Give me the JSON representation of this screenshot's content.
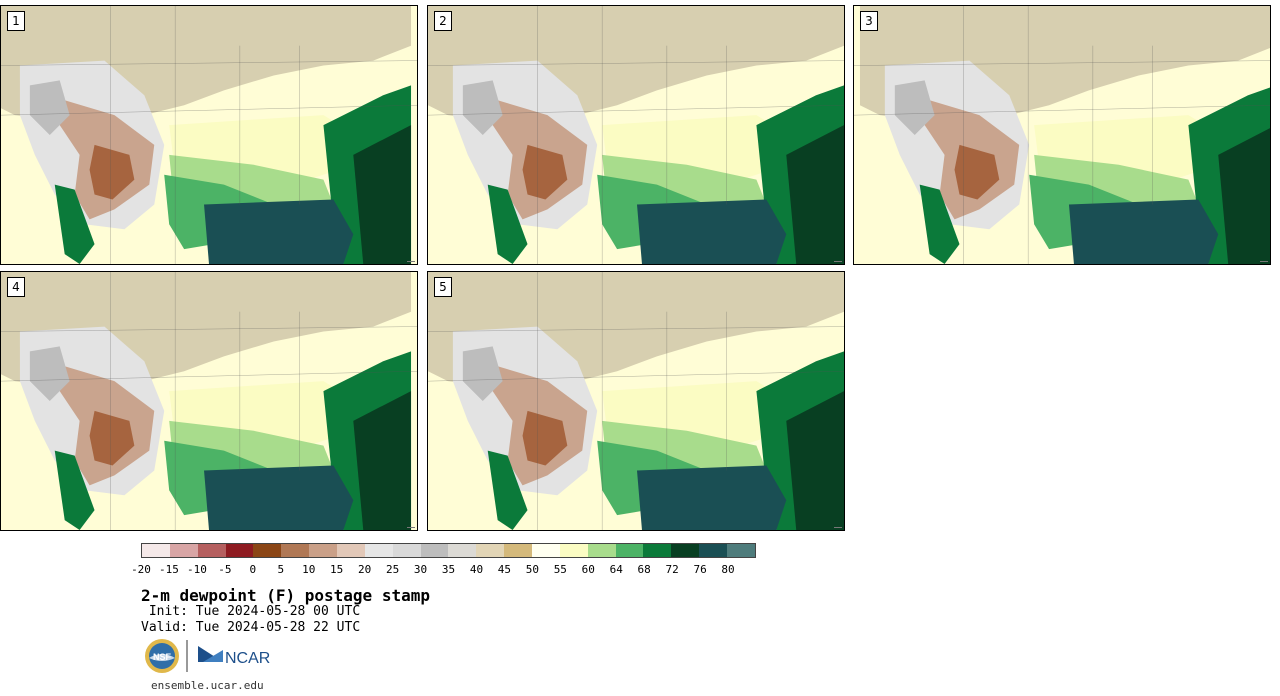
{
  "panels": [
    {
      "id": "panel-1",
      "label": "1"
    },
    {
      "id": "panel-2",
      "label": "2"
    },
    {
      "id": "panel-3",
      "label": "3"
    },
    {
      "id": "panel-4",
      "label": "4"
    },
    {
      "id": "panel-5",
      "label": "5"
    }
  ],
  "colorbar": {
    "colors": [
      "#f5e9e9",
      "#d8a5a5",
      "#b55f5f",
      "#8e1b21",
      "#8b4616",
      "#b07855",
      "#caa088",
      "#e2c8b8",
      "#e6e6e6",
      "#d9d9d9",
      "#bdbdbd",
      "#dcdad5",
      "#e2d5b6",
      "#d4b97b",
      "#fffff0",
      "#fbfcc3",
      "#a8dc8c",
      "#4cb366",
      "#0b7a3a",
      "#083f22",
      "#1a4f54",
      "#4e7c7c"
    ],
    "tick_labels": [
      "-20",
      "-15",
      "-10",
      "-5",
      "0",
      "5",
      "10",
      "15",
      "20",
      "25",
      "30",
      "35",
      "40",
      "45",
      "50",
      "55",
      "60",
      "64",
      "68",
      "72",
      "76",
      "80"
    ]
  },
  "title": "2-m dewpoint (F) postage stamp",
  "init": " Init: Tue 2024-05-28 00 UTC",
  "valid": "Valid: Tue 2024-05-28 22 UTC",
  "logos": {
    "nsf": "NSF",
    "ncar": "NCAR"
  },
  "url": "ensemble.ucar.edu"
}
